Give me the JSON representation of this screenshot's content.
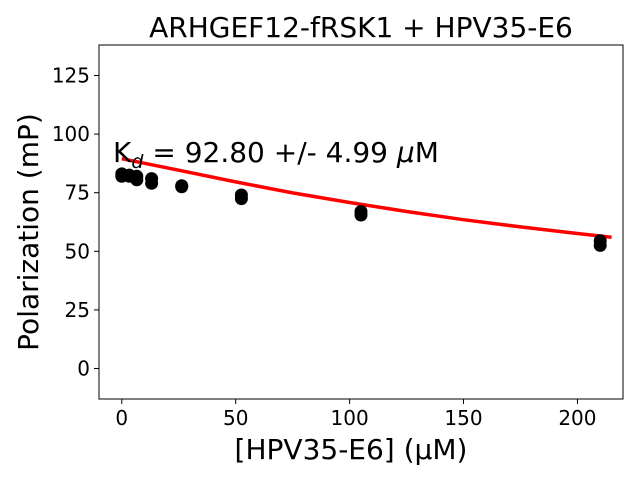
{
  "chart_data": {
    "type": "scatter",
    "title": "ARHGEF12-fRSK1 + HPV35-E6",
    "xlabel": "[HPV35-E6] (μM)",
    "ylabel": "Polarization (mP)",
    "xlim": [
      -10,
      220
    ],
    "ylim": [
      -13,
      138
    ],
    "xticks": [
      0,
      50,
      100,
      150,
      200
    ],
    "yticks": [
      0,
      25,
      50,
      75,
      100,
      125
    ],
    "grid": false,
    "annotation": {
      "k": "K",
      "sub": "d",
      "rest": " = 92.80 +/- 4.99 ",
      "mu": "μ",
      "unit": "M"
    },
    "series": [
      {
        "kind": "points",
        "color": "#000000",
        "x": [
          0,
          0,
          3.3,
          3.3,
          6.6,
          6.6,
          13.1,
          13.1,
          26.3,
          26.3,
          52.5,
          52.5,
          105,
          105,
          210,
          210
        ],
        "y": [
          83,
          82,
          82.5,
          82,
          82,
          80.5,
          81,
          79,
          78,
          77.5,
          74,
          72.5,
          67,
          65.5,
          54.5,
          52.5
        ]
      },
      {
        "kind": "fit",
        "color": "#ff0000",
        "x": [
          0,
          25,
          50,
          75,
          100,
          125,
          150,
          175,
          200,
          215
        ],
        "y": [
          89.5,
          84.6,
          79.6,
          74.9,
          70.8,
          67.0,
          63.5,
          60.4,
          57.6,
          56.0
        ]
      }
    ]
  }
}
